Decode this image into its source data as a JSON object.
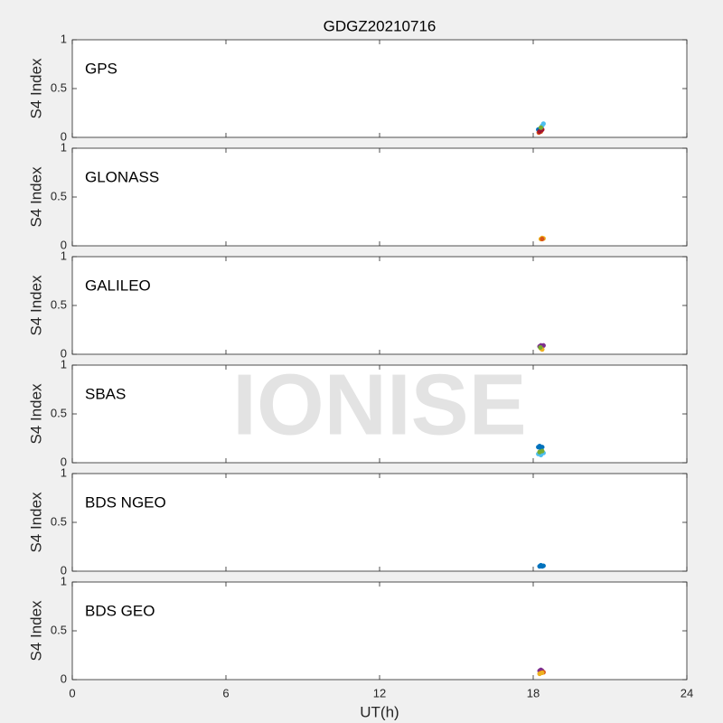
{
  "watermark": "IONISE",
  "chart_data": [
    {
      "type": "scatter",
      "title": "GDGZ20210716",
      "label": "GPS",
      "ylabel": "S4 Index",
      "xlim": [
        0,
        24
      ],
      "xticks": [
        0,
        6,
        12,
        18,
        24
      ],
      "ylim": [
        0,
        1
      ],
      "yticks": [
        0,
        0.5,
        1
      ],
      "series": [
        {
          "color": "#0072BD",
          "x": [
            18.2,
            18.25,
            18.3
          ],
          "values": [
            0.08,
            0.07,
            0.09
          ]
        },
        {
          "color": "#D95319",
          "x": [
            18.22,
            18.3
          ],
          "values": [
            0.05,
            0.06
          ]
        },
        {
          "color": "#A2142F",
          "x": [
            18.25,
            18.35
          ],
          "values": [
            0.06,
            0.08
          ]
        },
        {
          "color": "#4DBEEE",
          "x": [
            18.35,
            18.4
          ],
          "values": [
            0.12,
            0.14
          ]
        },
        {
          "color": "#77AC30",
          "x": [
            18.3
          ],
          "values": [
            0.1
          ]
        }
      ]
    },
    {
      "type": "scatter",
      "label": "GLONASS",
      "ylabel": "S4 Index",
      "xlim": [
        0,
        24
      ],
      "xticks": [
        0,
        6,
        12,
        18,
        24
      ],
      "ylim": [
        0,
        1
      ],
      "yticks": [
        0,
        0.5,
        1
      ],
      "series": [
        {
          "color": "#EDB120",
          "x": [
            18.3,
            18.35,
            18.4
          ],
          "values": [
            0.07,
            0.08,
            0.075
          ]
        },
        {
          "color": "#D95319",
          "x": [
            18.35
          ],
          "values": [
            0.07
          ]
        }
      ]
    },
    {
      "type": "scatter",
      "label": "GALILEO",
      "ylabel": "S4 Index",
      "xlim": [
        0,
        24
      ],
      "xticks": [
        0,
        6,
        12,
        18,
        24
      ],
      "ylim": [
        0,
        1
      ],
      "yticks": [
        0,
        0.5,
        1
      ],
      "series": [
        {
          "color": "#7E2F8E",
          "x": [
            18.25,
            18.3,
            18.35,
            18.4
          ],
          "values": [
            0.08,
            0.09,
            0.08,
            0.09
          ]
        },
        {
          "color": "#EDB120",
          "x": [
            18.3,
            18.35
          ],
          "values": [
            0.06,
            0.05
          ]
        },
        {
          "color": "#77AC30",
          "x": [
            18.28
          ],
          "values": [
            0.07
          ]
        }
      ]
    },
    {
      "type": "scatter",
      "label": "SBAS",
      "ylabel": "S4 Index",
      "xlim": [
        0,
        24
      ],
      "xticks": [
        0,
        6,
        12,
        18,
        24
      ],
      "ylim": [
        0,
        1
      ],
      "yticks": [
        0,
        0.5,
        1
      ],
      "series": [
        {
          "color": "#0072BD",
          "x": [
            18.2,
            18.25,
            18.3,
            18.35
          ],
          "values": [
            0.16,
            0.17,
            0.15,
            0.16
          ]
        },
        {
          "color": "#4DBEEE",
          "x": [
            18.2,
            18.3,
            18.4
          ],
          "values": [
            0.09,
            0.08,
            0.1
          ]
        },
        {
          "color": "#77AC30",
          "x": [
            18.25,
            18.35
          ],
          "values": [
            0.11,
            0.12
          ]
        }
      ]
    },
    {
      "type": "scatter",
      "label": "BDS NGEO",
      "ylabel": "S4 Index",
      "xlim": [
        0,
        24
      ],
      "xticks": [
        0,
        6,
        12,
        18,
        24
      ],
      "ylim": [
        0,
        1
      ],
      "yticks": [
        0,
        0.5,
        1
      ],
      "series": [
        {
          "color": "#0072BD",
          "x": [
            18.25,
            18.3,
            18.35,
            18.4
          ],
          "values": [
            0.05,
            0.06,
            0.05,
            0.055
          ]
        }
      ]
    },
    {
      "type": "scatter",
      "label": "BDS GEO",
      "ylabel": "S4 Index",
      "xlabel": "UT(h)",
      "xlim": [
        0,
        24
      ],
      "xticks": [
        0,
        6,
        12,
        18,
        24
      ],
      "ylim": [
        0,
        1
      ],
      "yticks": [
        0,
        0.5,
        1
      ],
      "series": [
        {
          "color": "#7E2F8E",
          "x": [
            18.25,
            18.3,
            18.35
          ],
          "values": [
            0.09,
            0.1,
            0.09
          ]
        },
        {
          "color": "#D95319",
          "x": [
            18.3,
            18.4
          ],
          "values": [
            0.07,
            0.075
          ]
        },
        {
          "color": "#EDB120",
          "x": [
            18.25,
            18.35
          ],
          "values": [
            0.06,
            0.07
          ]
        }
      ]
    }
  ]
}
